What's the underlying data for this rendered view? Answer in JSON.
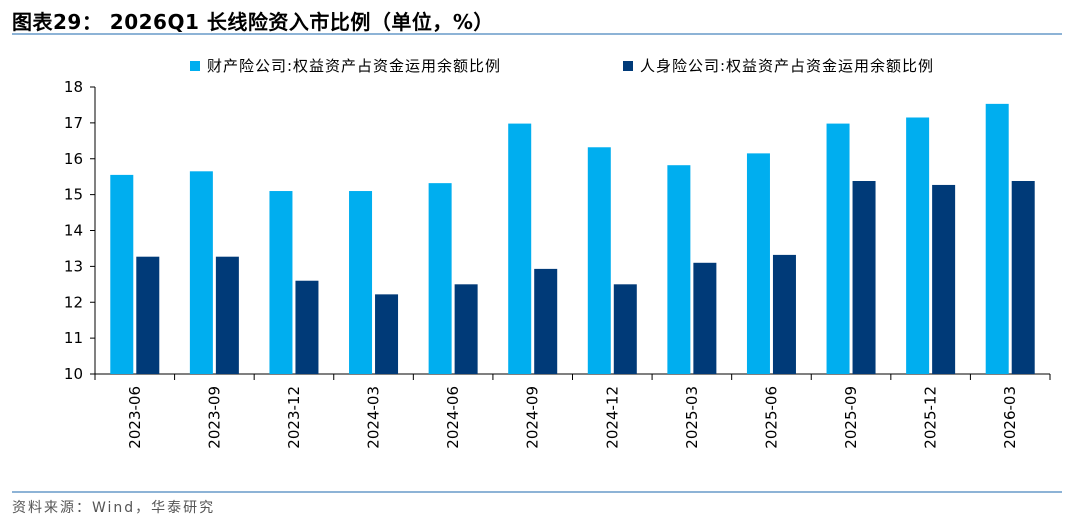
{
  "header": {
    "title": "图表29： 2026Q1 长线险资入市比例（单位，%）"
  },
  "footer": {
    "source": "资料来源：Wind，华泰研究"
  },
  "chart_data": {
    "type": "bar",
    "categories": [
      "2023-06",
      "2023-09",
      "2023-12",
      "2024-03",
      "2024-06",
      "2024-09",
      "2024-12",
      "2025-03",
      "2025-06",
      "2025-09",
      "2025-12",
      "2026-03"
    ],
    "series": [
      {
        "name": "财产险公司:权益资产占资金运用余额比例",
        "color": "#00aeef",
        "values": [
          15.55,
          15.65,
          15.1,
          15.1,
          15.32,
          16.98,
          16.32,
          15.82,
          16.15,
          16.98,
          17.15,
          17.53
        ]
      },
      {
        "name": "人身险公司:权益资产占资金运用余额比例",
        "color": "#003a78",
        "values": [
          13.27,
          13.27,
          12.6,
          12.22,
          12.5,
          12.93,
          12.5,
          13.1,
          13.32,
          15.38,
          15.27,
          15.38
        ]
      }
    ],
    "ylim": [
      10,
      18
    ],
    "yticks": [
      10,
      11,
      12,
      13,
      14,
      15,
      16,
      17,
      18
    ],
    "grid": false,
    "legend": "top"
  }
}
